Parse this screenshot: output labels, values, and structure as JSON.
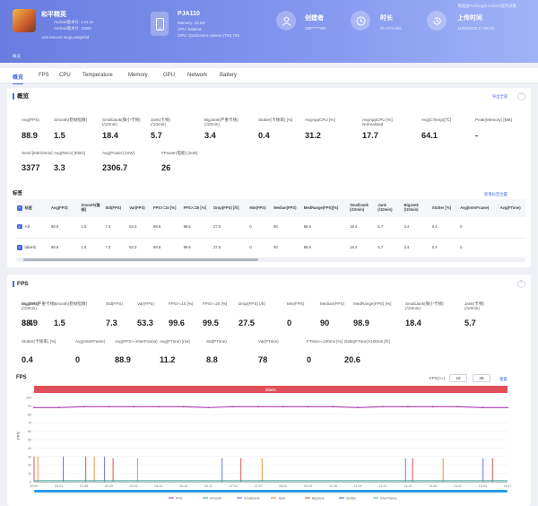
{
  "header": {
    "app_name": "和平精英",
    "android_version_1": "Android版本号: 1.21.21",
    "android_version_2": "Android版本号: 11500",
    "package": "com.tencent.tmgp.pubgmhd",
    "device_model": "PJA110",
    "device_memory": "Memory: 22.6G",
    "device_cpu": "CPU: kalama",
    "device_gpu": "GPU: Qualcomm Adreno (TM) 740",
    "creator_label": "创建者",
    "creator_value": "180*****363",
    "duration_label": "时长",
    "duration_value": "0h 17m 26s",
    "upload_label": "上传时间",
    "upload_value": "11/08/2023 17:08:22",
    "top_right": "数据由PerfDog(9.2.2310)提供采集",
    "breadcrumb": "概览"
  },
  "tabs": [
    "FPS",
    "CPU",
    "Temperature",
    "Memory",
    "GPU",
    "Network",
    "Battery"
  ],
  "overview": {
    "title": "概览",
    "export_link": "导出全部",
    "metrics": [
      {
        "label": "Avg(FPS)",
        "value": "88.9"
      },
      {
        "label": "Smooth(稳帧指数)",
        "value": "1.5"
      },
      {
        "label": "SmallJank(微小卡顿)\n(/10min)",
        "value": "18.4"
      },
      {
        "label": "Jank(卡顿)\n(/10min)",
        "value": "5.7"
      },
      {
        "label": "BigJank(严重卡顿)\n(/10min)",
        "value": "3.4"
      },
      {
        "label": "Stutter(卡顿率) [%]",
        "value": "0.4"
      },
      {
        "label": "AvgAppCPU [%]",
        "value": "31.2"
      },
      {
        "label": "AvgAppCPU [%]\nNormalized",
        "value": "17.7"
      },
      {
        "label": "Avg(CTemp)[℃]",
        "value": "64.1"
      },
      {
        "label": "Peak(Memory) [MB]",
        "value": "-"
      },
      {
        "label": "Send [KB/10min]",
        "value": "3377"
      },
      {
        "label": "Avg(Recv) [KB/s]",
        "value": "3.3"
      },
      {
        "label": "Avg(Power) [mW]",
        "value": "2306.7"
      },
      {
        "label": "FPower(电能) [mW]",
        "value": "26"
      }
    ]
  },
  "labels_table": {
    "title": "标签",
    "link": "新增标签位置",
    "headers": [
      "标签",
      "Avg(FPS)",
      "Smooth(稳帧)",
      "Std(FPS)",
      "Var(FPS)",
      "FPS>=10 [%]",
      "FPS>=25 [%]",
      "Drop(FPS) [/h]",
      "Min(FPS)",
      "Median(FPS)",
      "MedRange(FPS)[%]",
      "SmallJank\n(/10min)",
      "Jank\n(/10min)",
      "BigJank\n(/10min)",
      "Stutter [%]",
      "Avg(InterFrame)",
      "Avg(FTime)"
    ],
    "rows": [
      [
        "All",
        "88.9",
        "1.5",
        "7.3",
        "53.3",
        "99.6",
        "99.5",
        "27.5",
        "0",
        "90",
        "98.9",
        "18.4",
        "5.7",
        "3.4",
        "0.4",
        "0",
        ""
      ],
      [
        "label1",
        "88.9",
        "1.5",
        "7.3",
        "53.3",
        "99.6",
        "99.5",
        "27.5",
        "0",
        "90",
        "98.9",
        "18.4",
        "5.7",
        "3.4",
        "0.4",
        "0",
        ""
      ]
    ]
  },
  "fps_section": {
    "title": "FPS",
    "metrics": [
      {
        "label": "Avg(FPS)",
        "value": "88.9"
      },
      {
        "label": "Smooth(稳帧指数)",
        "value": "1.5"
      },
      {
        "label": "Std(FPS)",
        "value": "7.3"
      },
      {
        "label": "Var(FPS)",
        "value": "53.3"
      },
      {
        "label": "FPS>=10 [%]",
        "value": "99.6"
      },
      {
        "label": "FPS>=25 [%]",
        "value": "99.5"
      },
      {
        "label": "Drop(FPS) [/h]",
        "value": "27.5"
      },
      {
        "label": "Min(FPS)",
        "value": "0"
      },
      {
        "label": "Median(FPS)",
        "value": "90"
      },
      {
        "label": "MedRange(FPS) [%]",
        "value": "98.9"
      },
      {
        "label": "SmallJank(微小卡顿)\n(/10min)",
        "value": "18.4"
      },
      {
        "label": "Jank(卡顿)\n(/10min)",
        "value": "5.7"
      },
      {
        "label": "BigJank(严重卡顿)\n(/10min)",
        "value": "3.4"
      },
      {
        "label": "Stutter(卡顿率) [%]",
        "value": "0.4"
      },
      {
        "label": "Avg(InterFrame)",
        "value": "0"
      },
      {
        "label": "Avg(FPS>=InterFrame)",
        "value": "88.9"
      },
      {
        "label": "Avg(FTime) [ms]",
        "value": "11.2"
      },
      {
        "label": "Std(FTime)",
        "value": "8.8"
      },
      {
        "label": "Var(FTime)",
        "value": "78"
      },
      {
        "label": "FTime>=100ms [%]",
        "value": "0"
      },
      {
        "label": "Delta(FTime)>100ms [/h]",
        "value": "20.6"
      }
    ],
    "chart_title": "FPS",
    "fps_threshold_label": "FPS(>=)",
    "fps_threshold_1": "10",
    "fps_threshold_2": "25",
    "fps_threshold_link": "重置",
    "label_bar": "label1",
    "y_axis_label": "FPS"
  },
  "chart_data": {
    "type": "line",
    "title": "FPS",
    "ylabel": "FPS",
    "ylim": [
      0,
      100
    ],
    "yticks": [
      0,
      10,
      20,
      30,
      40,
      50,
      60,
      70,
      80,
      90,
      100
    ],
    "x": [
      "00:00",
      "00:53",
      "01:46",
      "02:39",
      "03:32",
      "04:25",
      "05:18",
      "06:11",
      "07:04",
      "07:57",
      "08:50",
      "09:43",
      "10:36",
      "11:29",
      "12:22",
      "13:15",
      "14:08",
      "15:01",
      "15:54",
      "16:47"
    ],
    "series": [
      {
        "name": "FPS",
        "color": "#b040b0",
        "values": [
          88,
          88,
          89,
          89,
          89,
          89,
          89,
          88,
          89,
          89,
          89,
          89,
          89,
          88,
          89,
          89,
          89,
          89,
          88,
          88
        ]
      },
      {
        "name": "Smooth",
        "color": "#3aa8a8",
        "values": [
          1.5,
          1.5,
          1.5,
          1.5,
          1.5,
          1.5,
          1.5,
          1.5,
          1.5,
          1.5,
          1.5,
          1.5,
          1.5,
          1.5,
          1.5,
          1.5,
          1.5,
          1.5,
          1.5,
          1.5
        ]
      },
      {
        "name": "SmallJank",
        "color": "#5a6ad8",
        "values": [
          0,
          0,
          0,
          0,
          0,
          0,
          0,
          0,
          0,
          0,
          0,
          0,
          0,
          0,
          0,
          0,
          0,
          0,
          0,
          0
        ]
      },
      {
        "name": "Jank",
        "color": "#e08a30",
        "values": [
          0,
          0,
          0,
          0,
          0,
          0,
          0,
          0,
          0,
          0,
          0,
          0,
          0,
          0,
          0,
          0,
          0,
          0,
          0,
          0
        ]
      },
      {
        "name": "BigJank",
        "color": "#d84040",
        "values": [
          0,
          0,
          0,
          0,
          0,
          0,
          0,
          0,
          0,
          0,
          0,
          0,
          0,
          0,
          0,
          0,
          0,
          0,
          0,
          0
        ]
      },
      {
        "name": "Stutter",
        "color": "#3a5ad0",
        "values": [
          0,
          0,
          0,
          0,
          0,
          0,
          0,
          0,
          0,
          0,
          0,
          0,
          0,
          0,
          0,
          0,
          0,
          0,
          0,
          0
        ]
      },
      {
        "name": "InterFrame",
        "color": "#4ac070",
        "values": [
          0,
          0,
          0,
          0,
          0,
          0,
          0,
          0,
          0,
          0,
          0,
          0,
          0,
          0,
          0,
          0,
          0,
          0,
          0,
          0
        ]
      }
    ],
    "jank_spikes_x": [
      "00:00",
      "00:08",
      "01:02",
      "01:50",
      "02:08",
      "02:30",
      "02:48",
      "03:40",
      "06:40",
      "07:20",
      "08:05",
      "13:10",
      "13:25",
      "14:30",
      "15:55",
      "16:15"
    ],
    "legend_position": "bottom"
  },
  "colors": {
    "accent": "#4b6ce0",
    "header_gradient_start": "#6a7cdf",
    "label_bar": "#e0505a"
  }
}
